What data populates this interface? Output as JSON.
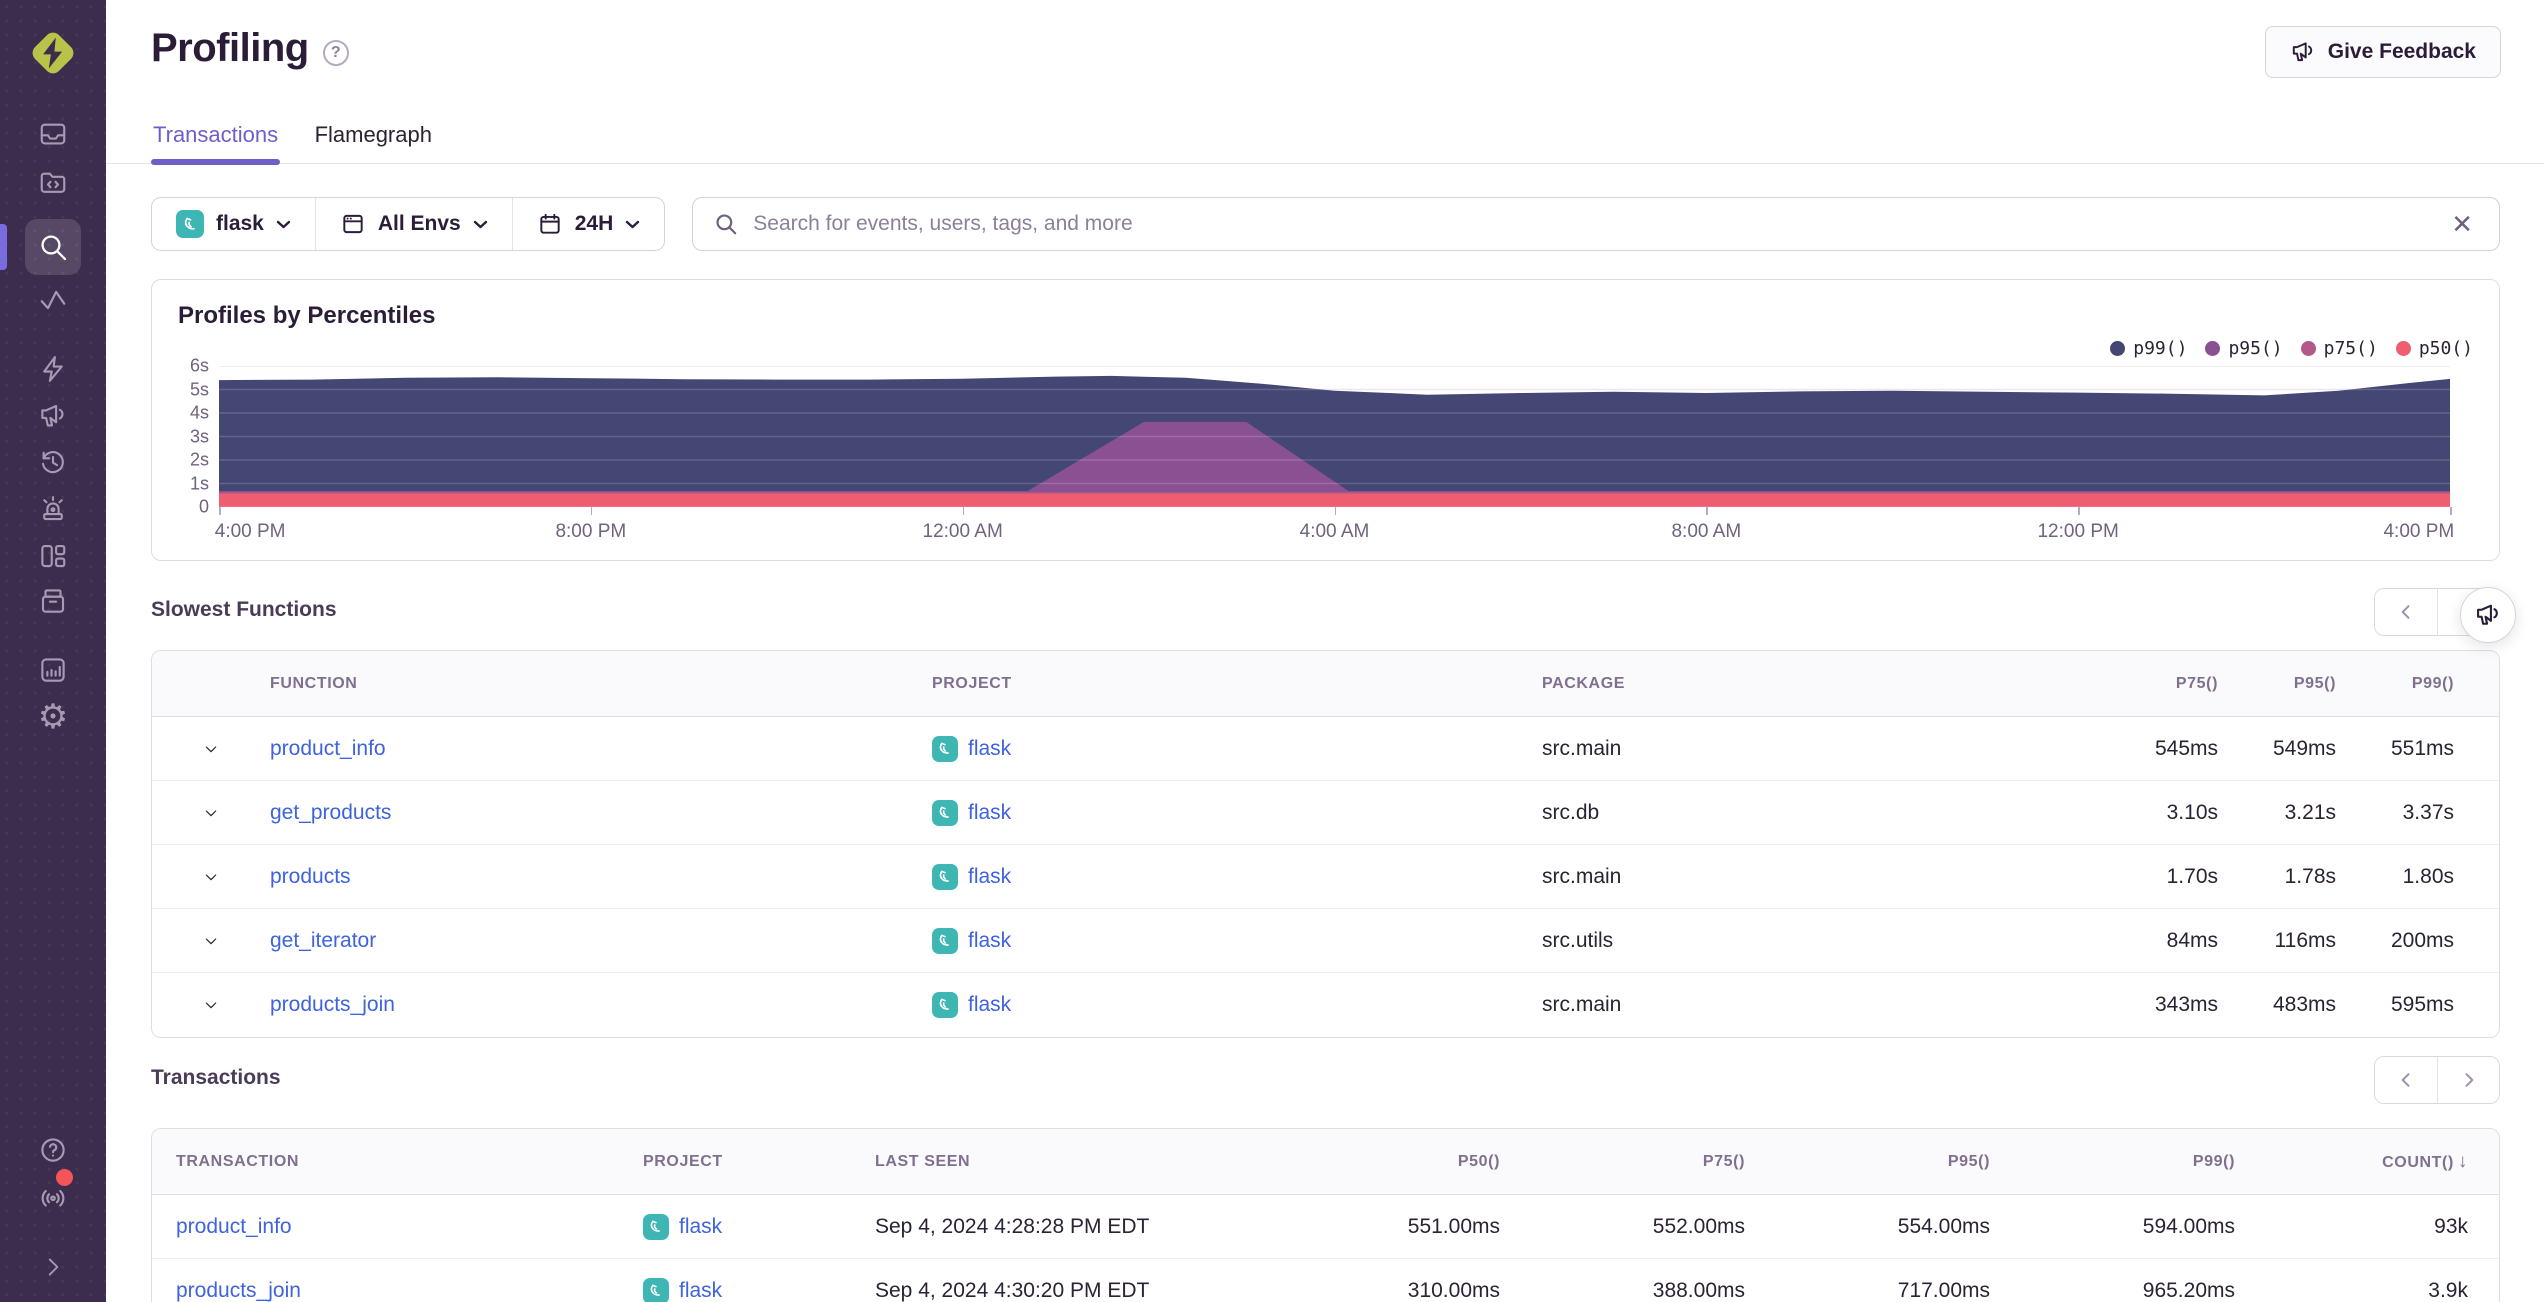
{
  "colors": {
    "accent": "#6d5fc7",
    "sidebar_bg": "#3c2c4d",
    "link": "#3e63dd",
    "project_badge": "#3eb6b4",
    "notification_red": "#f55459",
    "grid": "#e8e3ee"
  },
  "sidebar": {
    "items": [
      "sentry-logo",
      "issues-icon",
      "projects-icon",
      "explore-search-icon",
      "insights-icon",
      "boost-icon",
      "feedback-megaphone-icon",
      "history-icon",
      "alerts-siren-icon",
      "dashboards-icon",
      "archive-icon",
      "stats-icon",
      "settings-gear-icon",
      "help-icon",
      "whats-new-icon",
      "collapse-icon"
    ],
    "active_item": "explore-search-icon"
  },
  "header": {
    "title": "Profiling",
    "feedback_button": "Give Feedback"
  },
  "tabs": [
    {
      "label": "Transactions",
      "active": true
    },
    {
      "label": "Flamegraph",
      "active": false
    }
  ],
  "filters": {
    "project": "flask",
    "environment": "All Envs",
    "period": "24H",
    "search_placeholder": "Search for events, users, tags, and more",
    "clear_icon": "✕"
  },
  "chart_data": {
    "type": "area",
    "title": "Profiles by Percentiles",
    "xlabel": "",
    "ylabel": "",
    "xlim": [
      0,
      24
    ],
    "ylim": [
      0,
      6
    ],
    "x_ticks": [
      "4:00 PM",
      "8:00 PM",
      "12:00 AM",
      "4:00 AM",
      "8:00 AM",
      "12:00 PM",
      "4:00 PM"
    ],
    "y_ticks": [
      "6s",
      "5s",
      "4s",
      "3s",
      "2s",
      "1s",
      "0"
    ],
    "legend_position": "top-right",
    "grid": true,
    "series": [
      {
        "name": "p99()",
        "color": "#444674",
        "points": [
          [
            0,
            5.4
          ],
          [
            1,
            5.42
          ],
          [
            2,
            5.5
          ],
          [
            3,
            5.52
          ],
          [
            4,
            5.48
          ],
          [
            5,
            5.44
          ],
          [
            6,
            5.42
          ],
          [
            7,
            5.42
          ],
          [
            8,
            5.46
          ],
          [
            9,
            5.55
          ],
          [
            9.6,
            5.58
          ],
          [
            10.4,
            5.5
          ],
          [
            11.2,
            5.25
          ],
          [
            12,
            4.95
          ],
          [
            13,
            4.78
          ],
          [
            14,
            4.85
          ],
          [
            15,
            4.9
          ],
          [
            16,
            4.85
          ],
          [
            17,
            4.92
          ],
          [
            18,
            4.95
          ],
          [
            19,
            4.9
          ],
          [
            20,
            4.87
          ],
          [
            21,
            4.82
          ],
          [
            22,
            4.75
          ],
          [
            22.8,
            4.95
          ],
          [
            23.5,
            5.25
          ],
          [
            24,
            5.45
          ]
        ]
      },
      {
        "name": "p95()",
        "color": "#8a5092",
        "points": [
          [
            0,
            0.68
          ],
          [
            8.7,
            0.68
          ],
          [
            9.95,
            3.62
          ],
          [
            11.05,
            3.62
          ],
          [
            12.15,
            0.68
          ],
          [
            24,
            0.68
          ]
        ]
      },
      {
        "name": "p75()",
        "color": "#b4588a",
        "points": [
          [
            0,
            0.63
          ],
          [
            24,
            0.63
          ]
        ]
      },
      {
        "name": "p50()",
        "color": "#ef5e70",
        "points": [
          [
            0,
            0.57
          ],
          [
            24,
            0.57
          ]
        ]
      }
    ]
  },
  "slowest_functions": {
    "title": "Slowest Functions",
    "columns": [
      "FUNCTION",
      "PROJECT",
      "PACKAGE",
      "P75()",
      "P95()",
      "P99()"
    ],
    "rows": [
      {
        "function": "product_info",
        "project": "flask",
        "package": "src.main",
        "p75": "545ms",
        "p95": "549ms",
        "p99": "551ms"
      },
      {
        "function": "get_products",
        "project": "flask",
        "package": "src.db",
        "p75": "3.10s",
        "p95": "3.21s",
        "p99": "3.37s"
      },
      {
        "function": "products",
        "project": "flask",
        "package": "src.main",
        "p75": "1.70s",
        "p95": "1.78s",
        "p99": "1.80s"
      },
      {
        "function": "get_iterator",
        "project": "flask",
        "package": "src.utils",
        "p75": "84ms",
        "p95": "116ms",
        "p99": "200ms"
      },
      {
        "function": "products_join",
        "project": "flask",
        "package": "src.main",
        "p75": "343ms",
        "p95": "483ms",
        "p99": "595ms"
      }
    ]
  },
  "transactions": {
    "title": "Transactions",
    "columns": [
      "TRANSACTION",
      "PROJECT",
      "LAST SEEN",
      "P50()",
      "P75()",
      "P95()",
      "P99()",
      "COUNT()"
    ],
    "sort_indicator": "↓",
    "rows": [
      {
        "transaction": "product_info",
        "project": "flask",
        "last_seen": "Sep 4, 2024 4:28:28 PM EDT",
        "p50": "551.00ms",
        "p75": "552.00ms",
        "p95": "554.00ms",
        "p99": "594.00ms",
        "count": "93k"
      },
      {
        "transaction": "products_join",
        "project": "flask",
        "last_seen": "Sep 4, 2024 4:30:20 PM EDT",
        "p50": "310.00ms",
        "p75": "388.00ms",
        "p95": "717.00ms",
        "p99": "965.20ms",
        "count": "3.9k"
      }
    ]
  }
}
